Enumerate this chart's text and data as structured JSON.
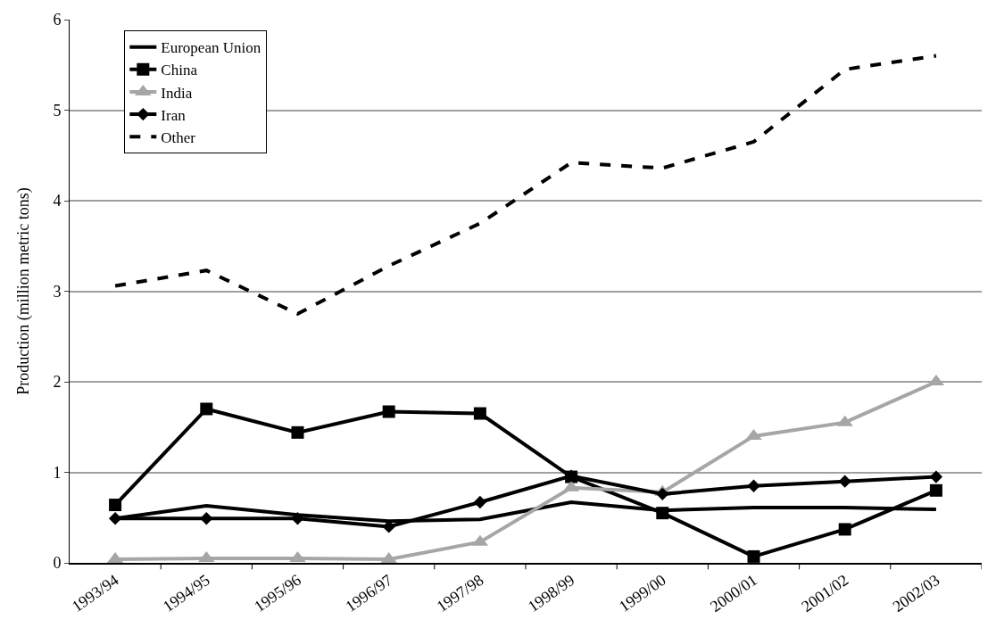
{
  "chart_data": {
    "type": "line",
    "ylabel": "Production (million metric tons)",
    "categories": [
      "1993/94",
      "1994/95",
      "1995/96",
      "1996/97",
      "1997/98",
      "1998/99",
      "1999/00",
      "2000/01",
      "2001/02",
      "2002/03"
    ],
    "series": [
      {
        "name": "European Union",
        "color": "#000000",
        "marker": "none",
        "line_style": "solid",
        "values": [
          0.49,
          0.63,
          0.53,
          0.46,
          0.48,
          0.67,
          0.58,
          0.61,
          0.61,
          0.59
        ]
      },
      {
        "name": "China",
        "color": "#000000",
        "marker": "square",
        "line_style": "solid",
        "values": [
          0.64,
          1.7,
          1.44,
          1.67,
          1.65,
          0.95,
          0.55,
          0.07,
          0.37,
          0.8
        ]
      },
      {
        "name": "India",
        "color": "#a6a6a6",
        "marker": "triangle",
        "line_style": "solid",
        "values": [
          0.04,
          0.05,
          0.05,
          0.04,
          0.23,
          0.83,
          0.78,
          1.4,
          1.55,
          2.0
        ]
      },
      {
        "name": "Iran",
        "color": "#000000",
        "marker": "diamond",
        "line_style": "solid",
        "values": [
          0.49,
          0.49,
          0.49,
          0.4,
          0.67,
          0.96,
          0.76,
          0.85,
          0.9,
          0.95
        ]
      },
      {
        "name": "Other",
        "color": "#000000",
        "marker": "none",
        "line_style": "dashed",
        "values": [
          3.06,
          3.23,
          2.75,
          3.28,
          3.75,
          4.42,
          4.36,
          4.65,
          5.45,
          5.6
        ]
      }
    ],
    "ylim": [
      0,
      6
    ],
    "yticks": [
      0,
      1,
      2,
      3,
      4,
      5,
      6
    ],
    "grid": "y",
    "legend": "top left"
  }
}
